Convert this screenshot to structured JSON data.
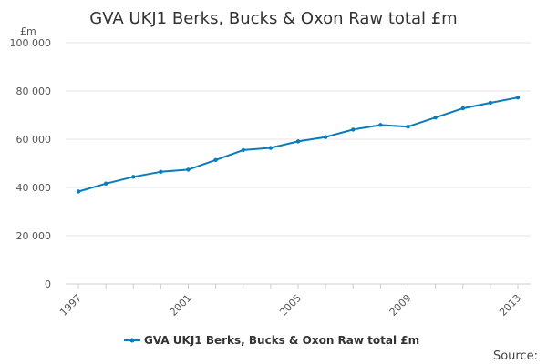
{
  "chart_data": {
    "type": "line",
    "title": "GVA UKJ1 Berks, Bucks & Oxon Raw total £m",
    "unit_label": "£m",
    "xlabel": "",
    "ylabel": "",
    "x": [
      1997,
      1998,
      1999,
      2000,
      2001,
      2002,
      2003,
      2004,
      2005,
      2006,
      2007,
      2008,
      2009,
      2010,
      2011,
      2012,
      2013
    ],
    "series": [
      {
        "name": "GVA UKJ1 Berks, Bucks & Oxon Raw total £m",
        "values": [
          38300,
          41600,
          44400,
          46500,
          47400,
          51400,
          55500,
          56400,
          59100,
          60900,
          64000,
          65900,
          65200,
          69000,
          72800,
          75100,
          77300
        ]
      }
    ],
    "x_tick_labels": [
      "1997",
      "2001",
      "2005",
      "2009",
      "2013"
    ],
    "y_ticks": [
      0,
      20000,
      40000,
      60000,
      80000,
      100000
    ],
    "y_tick_labels": [
      "0",
      "20 000",
      "40 000",
      "60 000",
      "80 000",
      "100 000"
    ],
    "xlim": [
      1997,
      2013
    ],
    "ylim": [
      0,
      100000
    ],
    "grid": true,
    "legend_position": "bottom",
    "source_text": "Source:",
    "colors": {
      "series": "#0a7bbd",
      "grid": "#e6e6e6",
      "axis": "#cccccc",
      "text": "#333333"
    }
  }
}
